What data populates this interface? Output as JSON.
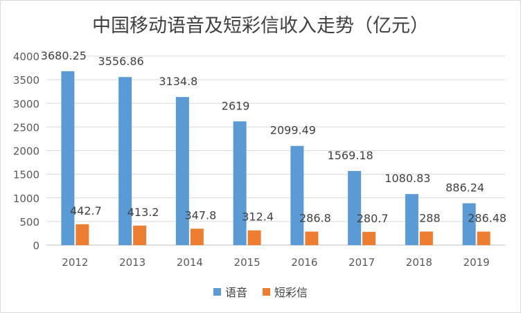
{
  "chart_data": {
    "type": "bar",
    "title": "中国移动语音及短彩信收入走势（亿元）",
    "categories": [
      "2012",
      "2013",
      "2014",
      "2015",
      "2016",
      "2017",
      "2018",
      "2019"
    ],
    "series": [
      {
        "name": "语音",
        "color": "#5b9bd5",
        "values": [
          3680.25,
          3556.86,
          3134.8,
          2619,
          2099.49,
          1569.18,
          1080.83,
          886.24
        ],
        "labels": [
          "3680.25",
          "3556.86",
          "3134.8",
          "2619",
          "2099.49",
          "1569.18",
          "1080.83",
          "886.24"
        ]
      },
      {
        "name": "短彩信",
        "color": "#ed7d31",
        "values": [
          442.7,
          413.2,
          347.8,
          312.4,
          286.8,
          280.7,
          288,
          286.48
        ],
        "labels": [
          "442.7",
          "413.2",
          "347.8",
          "312.4",
          "286.8",
          "280.7",
          "288",
          "286.48"
        ]
      }
    ],
    "ylim": [
      0,
      4000
    ],
    "yticks": [
      0,
      500,
      1000,
      1500,
      2000,
      2500,
      3000,
      3500,
      4000
    ],
    "xlabel": "",
    "ylabel": "",
    "grid": true,
    "legend_position": "bottom"
  }
}
